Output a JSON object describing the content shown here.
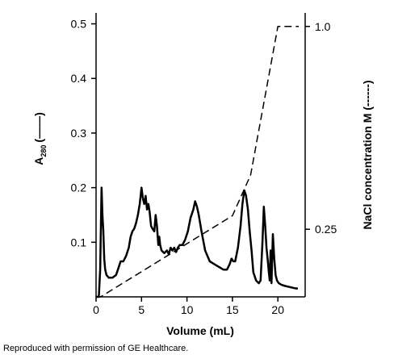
{
  "caption": "Reproduced with permission of GE Healthcare.",
  "chart_data": {
    "type": "line",
    "xlabel": "Volume (mL)",
    "ylabel_left": {
      "main": "A",
      "subscript": "280",
      "suffix": "(——)"
    },
    "ylabel_right": "NaCl concentration M (------)",
    "x_ticks": [
      0,
      5,
      10,
      15,
      20
    ],
    "y_left_ticks": [
      "0.1",
      "0.2",
      "0.3",
      "0.4",
      "0.5"
    ],
    "y_right_ticks": [
      "0.25",
      "1.0"
    ],
    "xlim": [
      0,
      23
    ],
    "ylim_left": [
      0,
      0.52
    ],
    "ylim_right": [
      0,
      1.05
    ],
    "grid": false,
    "series": [
      {
        "style": "solid",
        "axis": "left",
        "x": [
          0,
          0.3,
          0.45,
          0.6,
          0.7,
          0.8,
          0.9,
          1.0,
          1.15,
          1.4,
          1.8,
          2.2,
          2.5,
          2.7,
          3.0,
          3.3,
          3.6,
          3.8,
          4.0,
          4.2,
          4.4,
          4.6,
          4.8,
          5.0,
          5.15,
          5.3,
          5.45,
          5.6,
          5.75,
          5.9,
          6.05,
          6.2,
          6.4,
          6.55,
          6.7,
          6.85,
          6.95,
          7.05,
          7.2,
          7.5,
          7.8,
          8.0,
          8.2,
          8.4,
          8.6,
          8.8,
          9.0,
          9.2,
          9.5,
          9.8,
          10.1,
          10.4,
          10.7,
          10.9,
          11.1,
          11.3,
          11.6,
          12.0,
          12.5,
          13.0,
          13.5,
          14.0,
          14.4,
          14.7,
          14.9,
          15.1,
          15.3,
          15.6,
          15.9,
          16.1,
          16.3,
          16.5,
          16.7,
          16.9,
          17.1,
          17.3,
          17.6,
          17.9,
          18.1,
          18.3,
          18.45,
          18.6,
          18.75,
          18.9,
          19.0,
          19.1,
          19.2,
          19.3,
          19.45,
          19.6,
          19.75,
          19.9,
          20.1,
          20.4,
          20.8,
          21.3,
          21.8,
          22.2
        ],
        "y": [
          0.0,
          0.0,
          0.05,
          0.2,
          0.15,
          0.12,
          0.07,
          0.05,
          0.04,
          0.035,
          0.035,
          0.04,
          0.055,
          0.065,
          0.065,
          0.075,
          0.09,
          0.11,
          0.12,
          0.125,
          0.135,
          0.15,
          0.17,
          0.2,
          0.18,
          0.17,
          0.185,
          0.16,
          0.17,
          0.155,
          0.13,
          0.125,
          0.12,
          0.15,
          0.13,
          0.095,
          0.11,
          0.095,
          0.085,
          0.08,
          0.085,
          0.078,
          0.09,
          0.085,
          0.09,
          0.082,
          0.09,
          0.095,
          0.095,
          0.105,
          0.12,
          0.145,
          0.16,
          0.175,
          0.165,
          0.15,
          0.12,
          0.085,
          0.065,
          0.06,
          0.055,
          0.05,
          0.05,
          0.06,
          0.07,
          0.065,
          0.065,
          0.09,
          0.13,
          0.17,
          0.195,
          0.185,
          0.16,
          0.12,
          0.085,
          0.045,
          0.03,
          0.025,
          0.03,
          0.1,
          0.165,
          0.13,
          0.09,
          0.065,
          0.045,
          0.03,
          0.085,
          0.025,
          0.115,
          0.07,
          0.04,
          0.03,
          0.025,
          0.022,
          0.02,
          0.018,
          0.016,
          0.015
        ]
      },
      {
        "style": "dashed",
        "axis": "right",
        "x": [
          0,
          0.5,
          15.0,
          17.0,
          20.0,
          20.6,
          22.3
        ],
        "y": [
          0.0,
          0.0,
          0.3,
          0.45,
          1.0,
          1.0,
          1.0
        ]
      }
    ]
  }
}
